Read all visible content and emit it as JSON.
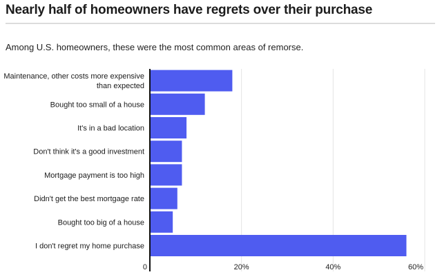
{
  "title": "Nearly half of homeowners have regrets over their purchase",
  "subtitle": "Among U.S. homeowners, these were the most common areas of remorse.",
  "colors": {
    "bar": "#4f5cf0",
    "grid": "#e4e4e4",
    "axis": "#111111"
  },
  "chart_data": {
    "type": "bar",
    "orientation": "horizontal",
    "categories": [
      [
        "Maintenance, other costs more expensive",
        "than expected"
      ],
      [
        "Bought too small of a house"
      ],
      [
        "It's in a bad location"
      ],
      [
        "Don't think it's a good investment"
      ],
      [
        "Mortgage payment is too high"
      ],
      [
        "Didn't get the best mortgage rate"
      ],
      [
        "Bought too big of a house"
      ],
      [
        "I don't regret my home purchase"
      ]
    ],
    "values": [
      18,
      12,
      8,
      7,
      7,
      6,
      5,
      56
    ],
    "xlim": [
      0,
      60
    ],
    "ticks": [
      0,
      20,
      40,
      60
    ],
    "tick_labels": [
      "0",
      "20%",
      "40%",
      "60%"
    ],
    "grid": true
  }
}
